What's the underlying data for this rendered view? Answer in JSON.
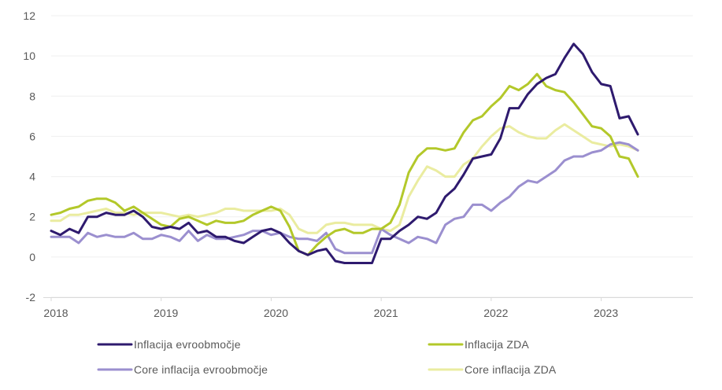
{
  "chart_data": {
    "type": "line",
    "title": "",
    "xlabel": "",
    "ylabel": "",
    "ylim": [
      -2,
      12
    ],
    "y_ticks": [
      "-2",
      "0",
      "2",
      "4",
      "6",
      "8",
      "10",
      "12"
    ],
    "x_tick_labels": [
      "2018",
      "2019",
      "2020",
      "2021",
      "2022",
      "2023"
    ],
    "x_range": [
      "2018-01",
      "2023-05"
    ],
    "grid": "horizontal",
    "legend_position": "bottom",
    "series": [
      {
        "name": "Inflacija evroobmočje",
        "color": "#2e1a6e",
        "x": [
          "2018-01",
          "2018-02",
          "2018-03",
          "2018-04",
          "2018-05",
          "2018-06",
          "2018-07",
          "2018-08",
          "2018-09",
          "2018-10",
          "2018-11",
          "2018-12",
          "2019-01",
          "2019-02",
          "2019-03",
          "2019-04",
          "2019-05",
          "2019-06",
          "2019-07",
          "2019-08",
          "2019-09",
          "2019-10",
          "2019-11",
          "2019-12",
          "2020-01",
          "2020-02",
          "2020-03",
          "2020-04",
          "2020-05",
          "2020-06",
          "2020-07",
          "2020-08",
          "2020-09",
          "2020-10",
          "2020-11",
          "2020-12",
          "2021-01",
          "2021-02",
          "2021-03",
          "2021-04",
          "2021-05",
          "2021-06",
          "2021-07",
          "2021-08",
          "2021-09",
          "2021-10",
          "2021-11",
          "2021-12",
          "2022-01",
          "2022-02",
          "2022-03",
          "2022-04",
          "2022-05",
          "2022-06",
          "2022-07",
          "2022-08",
          "2022-09",
          "2022-10",
          "2022-11",
          "2022-12",
          "2023-01",
          "2023-02",
          "2023-03",
          "2023-04",
          "2023-05"
        ],
        "values": [
          1.3,
          1.1,
          1.4,
          1.2,
          2.0,
          2.0,
          2.2,
          2.1,
          2.1,
          2.3,
          2.0,
          1.5,
          1.4,
          1.5,
          1.4,
          1.7,
          1.2,
          1.3,
          1.0,
          1.0,
          0.8,
          0.7,
          1.0,
          1.3,
          1.4,
          1.2,
          0.7,
          0.3,
          0.1,
          0.3,
          0.4,
          -0.2,
          -0.3,
          -0.3,
          -0.3,
          -0.3,
          0.9,
          0.9,
          1.3,
          1.6,
          2.0,
          1.9,
          2.2,
          3.0,
          3.4,
          4.1,
          4.9,
          5.0,
          5.1,
          5.9,
          7.4,
          7.4,
          8.1,
          8.6,
          8.9,
          9.1,
          9.9,
          10.6,
          10.1,
          9.2,
          8.6,
          8.5,
          6.9,
          7.0,
          6.1
        ]
      },
      {
        "name": "Inflacija ZDA",
        "color": "#b3c82a",
        "x": [
          "2018-01",
          "2018-02",
          "2018-03",
          "2018-04",
          "2018-05",
          "2018-06",
          "2018-07",
          "2018-08",
          "2018-09",
          "2018-10",
          "2018-11",
          "2018-12",
          "2019-01",
          "2019-02",
          "2019-03",
          "2019-04",
          "2019-05",
          "2019-06",
          "2019-07",
          "2019-08",
          "2019-09",
          "2019-10",
          "2019-11",
          "2019-12",
          "2020-01",
          "2020-02",
          "2020-03",
          "2020-04",
          "2020-05",
          "2020-06",
          "2020-07",
          "2020-08",
          "2020-09",
          "2020-10",
          "2020-11",
          "2020-12",
          "2021-01",
          "2021-02",
          "2021-03",
          "2021-04",
          "2021-05",
          "2021-06",
          "2021-07",
          "2021-08",
          "2021-09",
          "2021-10",
          "2021-11",
          "2021-12",
          "2022-01",
          "2022-02",
          "2022-03",
          "2022-04",
          "2022-05",
          "2022-06",
          "2022-07",
          "2022-08",
          "2022-09",
          "2022-10",
          "2022-11",
          "2022-12",
          "2023-01",
          "2023-02",
          "2023-03",
          "2023-04",
          "2023-05"
        ],
        "values": [
          2.1,
          2.2,
          2.4,
          2.5,
          2.8,
          2.9,
          2.9,
          2.7,
          2.3,
          2.5,
          2.2,
          1.9,
          1.6,
          1.5,
          1.9,
          2.0,
          1.8,
          1.6,
          1.8,
          1.7,
          1.7,
          1.8,
          2.1,
          2.3,
          2.5,
          2.3,
          1.5,
          0.3,
          0.1,
          0.6,
          1.0,
          1.3,
          1.4,
          1.2,
          1.2,
          1.4,
          1.4,
          1.7,
          2.6,
          4.2,
          5.0,
          5.4,
          5.4,
          5.3,
          5.4,
          6.2,
          6.8,
          7.0,
          7.5,
          7.9,
          8.5,
          8.3,
          8.6,
          9.1,
          8.5,
          8.3,
          8.2,
          7.7,
          7.1,
          6.5,
          6.4,
          6.0,
          5.0,
          4.9,
          4.0
        ]
      },
      {
        "name": "Core inflacija evroobmočje",
        "color": "#9b8fcf",
        "x": [
          "2018-01",
          "2018-02",
          "2018-03",
          "2018-04",
          "2018-05",
          "2018-06",
          "2018-07",
          "2018-08",
          "2018-09",
          "2018-10",
          "2018-11",
          "2018-12",
          "2019-01",
          "2019-02",
          "2019-03",
          "2019-04",
          "2019-05",
          "2019-06",
          "2019-07",
          "2019-08",
          "2019-09",
          "2019-10",
          "2019-11",
          "2019-12",
          "2020-01",
          "2020-02",
          "2020-03",
          "2020-04",
          "2020-05",
          "2020-06",
          "2020-07",
          "2020-08",
          "2020-09",
          "2020-10",
          "2020-11",
          "2020-12",
          "2021-01",
          "2021-02",
          "2021-03",
          "2021-04",
          "2021-05",
          "2021-06",
          "2021-07",
          "2021-08",
          "2021-09",
          "2021-10",
          "2021-11",
          "2021-12",
          "2022-01",
          "2022-02",
          "2022-03",
          "2022-04",
          "2022-05",
          "2022-06",
          "2022-07",
          "2022-08",
          "2022-09",
          "2022-10",
          "2022-11",
          "2022-12",
          "2023-01",
          "2023-02",
          "2023-03",
          "2023-04",
          "2023-05"
        ],
        "values": [
          1.0,
          1.0,
          1.0,
          0.7,
          1.2,
          1.0,
          1.1,
          1.0,
          1.0,
          1.2,
          0.9,
          0.9,
          1.1,
          1.0,
          0.8,
          1.3,
          0.8,
          1.1,
          0.9,
          0.9,
          1.0,
          1.1,
          1.3,
          1.3,
          1.1,
          1.2,
          1.0,
          0.9,
          0.9,
          0.8,
          1.2,
          0.4,
          0.2,
          0.2,
          0.2,
          0.2,
          1.4,
          1.1,
          0.9,
          0.7,
          1.0,
          0.9,
          0.7,
          1.6,
          1.9,
          2.0,
          2.6,
          2.6,
          2.3,
          2.7,
          3.0,
          3.5,
          3.8,
          3.7,
          4.0,
          4.3,
          4.8,
          5.0,
          5.0,
          5.2,
          5.3,
          5.6,
          5.7,
          5.6,
          5.3
        ]
      },
      {
        "name": "Core inflacija ZDA",
        "color": "#eaeca0",
        "x": [
          "2018-01",
          "2018-02",
          "2018-03",
          "2018-04",
          "2018-05",
          "2018-06",
          "2018-07",
          "2018-08",
          "2018-09",
          "2018-10",
          "2018-11",
          "2018-12",
          "2019-01",
          "2019-02",
          "2019-03",
          "2019-04",
          "2019-05",
          "2019-06",
          "2019-07",
          "2019-08",
          "2019-09",
          "2019-10",
          "2019-11",
          "2019-12",
          "2020-01",
          "2020-02",
          "2020-03",
          "2020-04",
          "2020-05",
          "2020-06",
          "2020-07",
          "2020-08",
          "2020-09",
          "2020-10",
          "2020-11",
          "2020-12",
          "2021-01",
          "2021-02",
          "2021-03",
          "2021-04",
          "2021-05",
          "2021-06",
          "2021-07",
          "2021-08",
          "2021-09",
          "2021-10",
          "2021-11",
          "2021-12",
          "2022-01",
          "2022-02",
          "2022-03",
          "2022-04",
          "2022-05",
          "2022-06",
          "2022-07",
          "2022-08",
          "2022-09",
          "2022-10",
          "2022-11",
          "2022-12",
          "2023-01",
          "2023-02",
          "2023-03",
          "2023-04",
          "2023-05"
        ],
        "values": [
          1.8,
          1.8,
          2.1,
          2.1,
          2.2,
          2.3,
          2.4,
          2.2,
          2.2,
          2.1,
          2.2,
          2.2,
          2.2,
          2.1,
          2.0,
          2.1,
          2.0,
          2.1,
          2.2,
          2.4,
          2.4,
          2.3,
          2.3,
          2.3,
          2.3,
          2.4,
          2.1,
          1.4,
          1.2,
          1.2,
          1.6,
          1.7,
          1.7,
          1.6,
          1.6,
          1.6,
          1.4,
          1.3,
          1.6,
          3.0,
          3.8,
          4.5,
          4.3,
          4.0,
          4.0,
          4.6,
          4.9,
          5.5,
          6.0,
          6.4,
          6.5,
          6.2,
          6.0,
          5.9,
          5.9,
          6.3,
          6.6,
          6.3,
          6.0,
          5.7,
          5.6,
          5.5,
          5.6,
          5.5,
          5.3
        ]
      }
    ]
  }
}
